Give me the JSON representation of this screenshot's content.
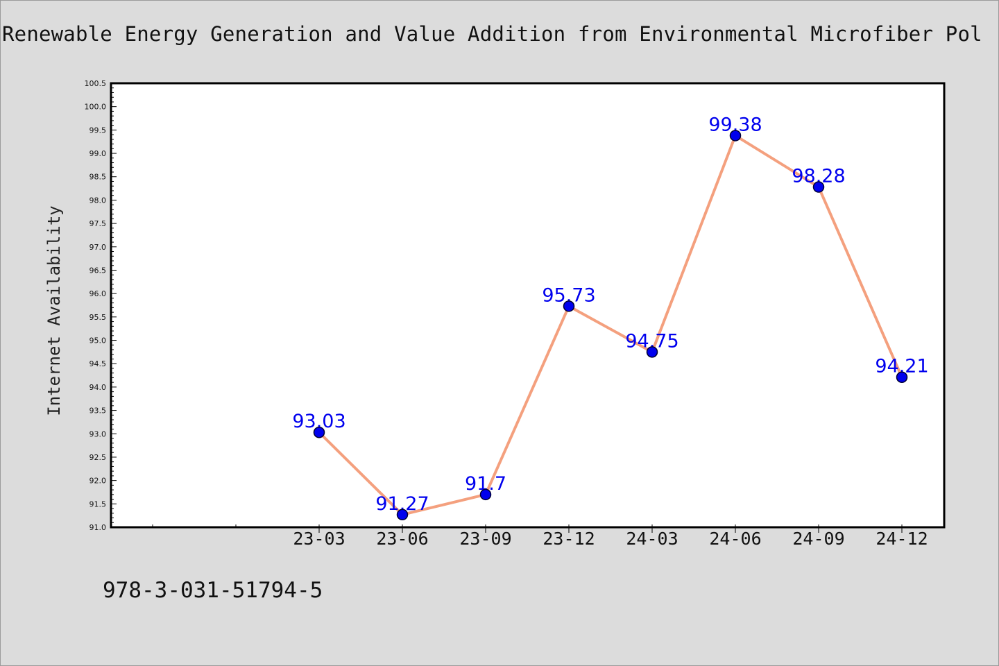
{
  "chart_data": {
    "type": "line",
    "title": "Renewable Energy Generation and Value Addition from Environmental Microfiber Pol",
    "xlabel": "",
    "ylabel": "Internet Availability",
    "categories": [
      "23-03",
      "23-06",
      "23-09",
      "23-12",
      "24-03",
      "24-06",
      "24-09",
      "24-12"
    ],
    "series": [
      {
        "values": [
          93.03,
          91.27,
          91.7,
          95.73,
          94.75,
          99.38,
          98.28,
          94.21
        ]
      }
    ],
    "data_labels": [
      "93.03",
      "91.27",
      "91.7",
      "95.73",
      "94.75",
      "99.38",
      "98.28",
      "94.21"
    ],
    "ylim": [
      91.0,
      100.5
    ],
    "y_ticks": [
      "91.0",
      "91.5",
      "92.0",
      "92.5",
      "93.0",
      "93.5",
      "94.0",
      "94.5",
      "95.0",
      "95.5",
      "96.0",
      "96.5",
      "97.0",
      "97.5",
      "98.0",
      "98.5",
      "99.0",
      "99.5",
      "100.0",
      "100.5"
    ],
    "grid": false,
    "line_color": "#f4a07e",
    "marker_color": "#0000ee",
    "label_color": "#0000ee"
  },
  "footer": {
    "code": "978-3-031-51794-5"
  }
}
